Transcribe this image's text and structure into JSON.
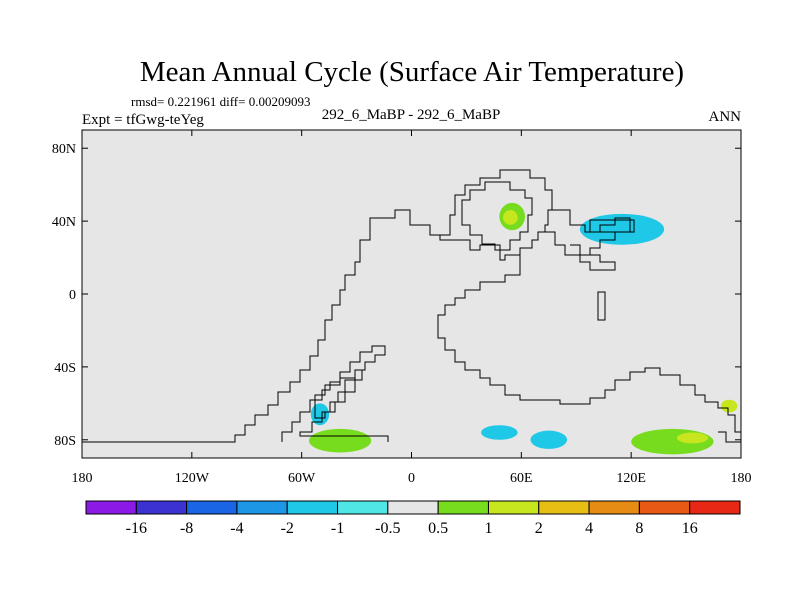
{
  "chart_data": {
    "type": "heatmap",
    "title": "Mean Annual Cycle (Surface Air Temperature)",
    "stats": "rmsd= 0.221961 diff= 0.00209093",
    "left_label": "Expt = tfGwg-teYeg",
    "center_label": "292_6_MaBP - 292_6_MaBP",
    "right_label": "ANN",
    "x_ticks": [
      {
        "value": -180,
        "label": "180"
      },
      {
        "value": -120,
        "label": "120W"
      },
      {
        "value": -60,
        "label": "60W"
      },
      {
        "value": 0,
        "label": "0"
      },
      {
        "value": 60,
        "label": "60E"
      },
      {
        "value": 120,
        "label": "120E"
      },
      {
        "value": 180,
        "label": "180"
      }
    ],
    "y_ticks": [
      {
        "value": 80,
        "label": "80N"
      },
      {
        "value": 40,
        "label": "40N"
      },
      {
        "value": 0,
        "label": "0"
      },
      {
        "value": -40,
        "label": "40S"
      },
      {
        "value": -80,
        "label": "80S"
      }
    ],
    "xlim": [
      -180,
      180
    ],
    "ylim": [
      -90,
      90
    ],
    "colorbar": {
      "colors": [
        "#8c1ae6",
        "#3c32d2",
        "#1a64e6",
        "#1e96e6",
        "#1ec8e6",
        "#50e6e6",
        "#e6e6e6",
        "#78dc1e",
        "#c8e61e",
        "#e6be14",
        "#e68c14",
        "#e65a14",
        "#e62814"
      ],
      "labels": [
        "-16",
        "-8",
        "-4",
        "-2",
        "-1",
        "-0.5",
        "0.5",
        "1",
        "2",
        "4",
        "8",
        "16"
      ]
    },
    "anomalies": [
      {
        "name": "central-asia-warm",
        "band": "1",
        "lon": [
          48,
          62
        ],
        "lat": [
          35,
          50
        ]
      },
      {
        "name": "central-asia-warm-core",
        "band": "2",
        "lon": [
          50,
          58
        ],
        "lat": [
          38,
          46
        ]
      },
      {
        "name": "east-asia-cool",
        "band": "-1",
        "lon": [
          92,
          138
        ],
        "lat": [
          27,
          44
        ]
      },
      {
        "name": "antarctic-peninsula-cool",
        "band": "-1",
        "lon": [
          -55,
          -45
        ],
        "lat": [
          -72,
          -60
        ]
      },
      {
        "name": "west-antarctic-warm",
        "band": "1",
        "lon": [
          -56,
          -22
        ],
        "lat": [
          -87,
          -74
        ]
      },
      {
        "name": "southern-ocean-cool-1",
        "band": "-1",
        "lon": [
          38,
          58
        ],
        "lat": [
          -80,
          -72
        ]
      },
      {
        "name": "southern-ocean-cool-2",
        "band": "-1",
        "lon": [
          65,
          85
        ],
        "lat": [
          -85,
          -75
        ]
      },
      {
        "name": "east-antarctic-warm",
        "band": "1",
        "lon": [
          120,
          165
        ],
        "lat": [
          -88,
          -74
        ]
      },
      {
        "name": "east-antarctic-warm-core",
        "band": "2",
        "lon": [
          145,
          162
        ],
        "lat": [
          -82,
          -76
        ]
      },
      {
        "name": "ross-sea-warm",
        "band": "2",
        "lon": [
          169,
          178
        ],
        "lat": [
          -65,
          -58
        ]
      }
    ]
  }
}
